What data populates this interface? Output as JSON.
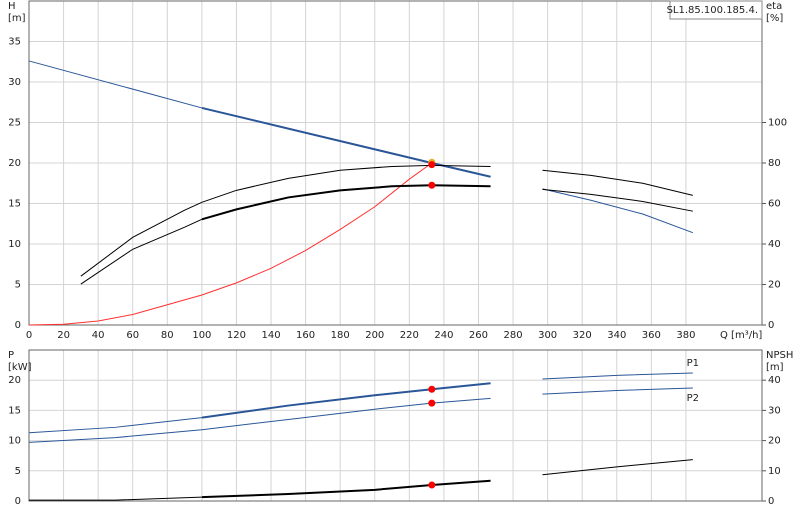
{
  "chart_data": [
    {
      "type": "line",
      "title": "SL1.85.100.185.4.",
      "ylabel": "H",
      "yunit": "[m]",
      "y2label": "eta",
      "y2unit": "[%]",
      "xlabel": "Q [m³/h]",
      "xlim": [
        0,
        424
      ],
      "xticks": [
        0,
        20,
        40,
        60,
        80,
        100,
        120,
        140,
        160,
        180,
        200,
        220,
        240,
        260,
        280,
        300,
        320,
        340,
        360,
        380
      ],
      "ylim": [
        0,
        40
      ],
      "yticks": [
        0,
        5,
        10,
        15,
        20,
        25,
        30,
        35
      ],
      "y2lim": [
        0,
        160
      ],
      "y2ticks": [
        0,
        20,
        40,
        60,
        80,
        100
      ],
      "grid": true,
      "show_xtick_labels": true,
      "series": [
        {
          "color": "#2a5698",
          "width": 1,
          "x": [
            0,
            100
          ],
          "values": [
            32.6,
            26.8
          ]
        },
        {
          "color": "#2a5698",
          "width": 2,
          "x": [
            100,
            233,
            267
          ],
          "values": [
            26.8,
            20,
            18.3
          ]
        },
        {
          "color": "#2a5698",
          "width": 1,
          "x": [
            297,
            325,
            355,
            384
          ],
          "values": [
            16.8,
            15.4,
            13.7,
            11.4
          ]
        },
        {
          "color": "#ff3030",
          "width": 1,
          "x": [
            0,
            20,
            40,
            60,
            80,
            100,
            120,
            140,
            160,
            180,
            200,
            220,
            233
          ],
          "values": [
            0,
            0.1,
            0.5,
            1.3,
            2.5,
            3.7,
            5.2,
            7,
            9.2,
            11.8,
            14.6,
            18,
            20
          ]
        },
        {
          "color": "#000000",
          "width": 1,
          "axis": "y2",
          "x": [
            30,
            60,
            90,
            100,
            120,
            150,
            180,
            210,
            233,
            267
          ],
          "values": [
            24.1,
            43.3,
            56.7,
            60.6,
            66.5,
            72.4,
            76.4,
            78.3,
            78.8,
            78.3
          ]
        },
        {
          "color": "#000000",
          "width": 1,
          "axis": "y2",
          "x": [
            30,
            60,
            90,
            100
          ],
          "values": [
            20.2,
            37.4,
            48.3,
            52.2
          ]
        },
        {
          "color": "#000000",
          "width": 2,
          "axis": "y2",
          "x": [
            100,
            120,
            150,
            180,
            210,
            233,
            267
          ],
          "values": [
            52.2,
            57.1,
            63,
            66.5,
            68.5,
            69,
            68.5
          ]
        },
        {
          "color": "#000000",
          "width": 1,
          "axis": "y2",
          "x": [
            297,
            325,
            355,
            384
          ],
          "values": [
            76.4,
            73.9,
            70,
            64
          ]
        },
        {
          "color": "#000000",
          "width": 1,
          "axis": "y2",
          "x": [
            297,
            325,
            355,
            384
          ],
          "values": [
            67,
            64.5,
            61,
            56.2
          ]
        }
      ],
      "points": [
        {
          "x": 233,
          "y": 20.1,
          "color": "#e8b020"
        },
        {
          "x": 233,
          "y": 19.8,
          "color": "#ff0000"
        },
        {
          "x": 233,
          "y": 69,
          "color": "#ff0000",
          "axis": "y2"
        }
      ]
    },
    {
      "type": "line",
      "ylabel": "P",
      "yunit": "[kW]",
      "y2label": "NPSH",
      "y2unit": "[m]",
      "xlim": [
        0,
        424
      ],
      "xticks": [
        0,
        20,
        40,
        60,
        80,
        100,
        120,
        140,
        160,
        180,
        200,
        220,
        240,
        260,
        280,
        300,
        320,
        340,
        360,
        380
      ],
      "ylim": [
        0,
        25
      ],
      "yticks": [
        0,
        5,
        10,
        15,
        20
      ],
      "y2lim": [
        0,
        50
      ],
      "y2ticks": [
        0,
        10,
        20,
        30,
        40
      ],
      "grid": true,
      "show_xtick_labels": false,
      "series": [
        {
          "color": "#2a5698",
          "width": 1,
          "x": [
            0,
            50,
            100
          ],
          "values": [
            11.3,
            12.2,
            13.8
          ]
        },
        {
          "color": "#2a5698",
          "width": 2,
          "x": [
            100,
            150,
            200,
            233,
            267
          ],
          "values": [
            13.8,
            15.8,
            17.5,
            18.5,
            19.5
          ]
        },
        {
          "name": "P1",
          "label_side": "above",
          "color": "#2a5698",
          "width": 1,
          "x": [
            297,
            340,
            384
          ],
          "values": [
            20.2,
            20.8,
            21.2
          ]
        },
        {
          "color": "#2a5698",
          "width": 1,
          "x": [
            0,
            50,
            100,
            150,
            200,
            233,
            267
          ],
          "values": [
            9.7,
            10.5,
            11.8,
            13.5,
            15.2,
            16.2,
            17
          ]
        },
        {
          "name": "P2",
          "label_side": "below",
          "color": "#2a5698",
          "width": 1,
          "x": [
            297,
            340,
            384
          ],
          "values": [
            17.7,
            18.3,
            18.7
          ]
        },
        {
          "color": "#000000",
          "width": 1,
          "axis": "y2",
          "x": [
            0,
            50,
            100
          ],
          "values": [
            0.3,
            0.3,
            1.3
          ]
        },
        {
          "color": "#000000",
          "width": 2,
          "axis": "y2",
          "x": [
            100,
            150,
            200,
            233,
            267
          ],
          "values": [
            1.3,
            2.3,
            3.7,
            5.3,
            6.7
          ]
        },
        {
          "color": "#000000",
          "width": 1,
          "axis": "y2",
          "x": [
            297,
            340,
            384
          ],
          "values": [
            8.7,
            11.3,
            13.7
          ]
        }
      ],
      "points": [
        {
          "x": 233,
          "y": 18.5,
          "color": "#ff0000"
        },
        {
          "x": 233,
          "y": 16.2,
          "color": "#ff0000"
        },
        {
          "x": 233,
          "y": 5.3,
          "color": "#ff0000",
          "axis": "y2"
        }
      ]
    }
  ]
}
